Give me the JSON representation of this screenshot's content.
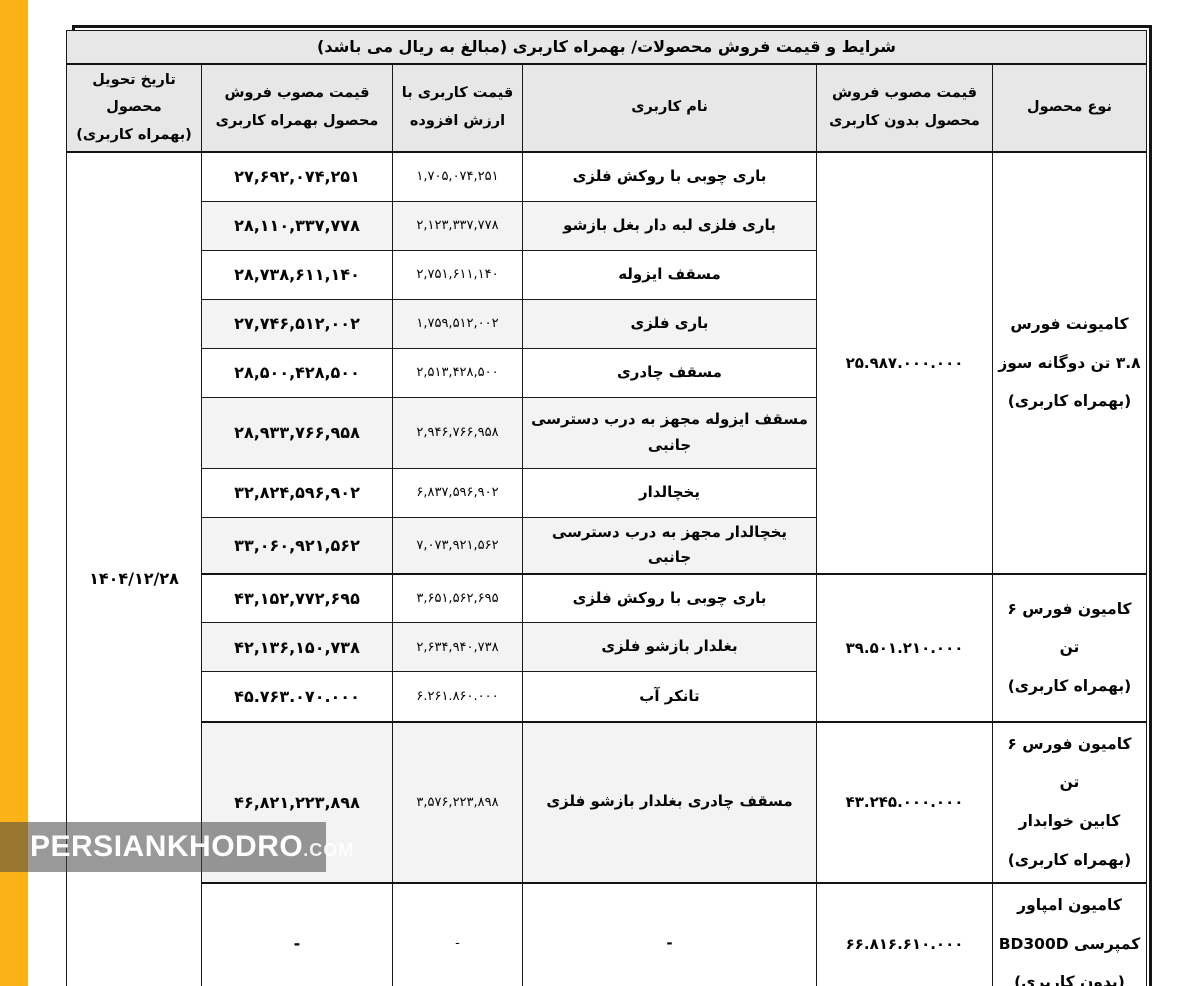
{
  "colors": {
    "accent_bar": "#FBB216",
    "header_bg": "#E7E7E7",
    "row_alt_bg": "#F3F3F3",
    "watermark_bg_rgba": "rgba(70,70,70,0.55)"
  },
  "watermark": {
    "brand": "PERSIANKHODRO",
    "suffix": ".COM"
  },
  "table": {
    "title": "شرایط و قیمت فروش محصولات/ بهمراه کاربری (مبالغ به ریال می باشد)",
    "headers": {
      "product_type": "نوع محصول",
      "price_without": "قیمت مصوب فروش\nمحصول بدون کاربری",
      "usage_name": "نام کاربری",
      "usage_price_vat": "قیمت کاربری با\nارزش افزوده",
      "price_with": "قیمت مصوب فروش\nمحصول بهمراه کاربری",
      "delivery_date": "تاریخ تحویل\nمحصول\n(بهمراه کاربری)"
    },
    "delivery_date": "۱۴۰۴/۱۲/۲۸",
    "groups": [
      {
        "product_type": [
          "کامیونت فورس",
          "۳.۸ تن دوگانه سوز",
          "(بهمراه کاربری)"
        ],
        "price_without": "۲۵.۹۸۷.۰۰۰.۰۰۰",
        "rows": [
          {
            "usage": "باری چوبی با روکش فلزی",
            "vat_price": "۱,۷۰۵,۰۷۴,۲۵۱",
            "total_price": "۲۷,۶۹۲,۰۷۴,۲۵۱"
          },
          {
            "usage": "باری فلزی لبه دار بغل بازشو",
            "vat_price": "۲,۱۲۳,۳۳۷,۷۷۸",
            "total_price": "۲۸,۱۱۰,۳۳۷,۷۷۸"
          },
          {
            "usage": "مسقف ایزوله",
            "vat_price": "۲,۷۵۱,۶۱۱,۱۴۰",
            "total_price": "۲۸,۷۳۸,۶۱۱,۱۴۰"
          },
          {
            "usage": "باری فلزی",
            "vat_price": "۱,۷۵۹,۵۱۲,۰۰۲",
            "total_price": "۲۷,۷۴۶,۵۱۲,۰۰۲"
          },
          {
            "usage": "مسقف چادری",
            "vat_price": "۲,۵۱۳,۴۲۸,۵۰۰",
            "total_price": "۲۸,۵۰۰,۴۲۸,۵۰۰"
          },
          {
            "usage": "مسقف ایزوله مجهز به درب دسترسی جانبی",
            "vat_price": "۲,۹۴۶,۷۶۶,۹۵۸",
            "total_price": "۲۸,۹۳۳,۷۶۶,۹۵۸"
          },
          {
            "usage": "یخچالدار",
            "vat_price": "۶,۸۳۷,۵۹۶,۹۰۲",
            "total_price": "۳۲,۸۲۴,۵۹۶,۹۰۲"
          },
          {
            "usage": "یخچالدار مجهز به درب دسترسی جانبی",
            "vat_price": "۷,۰۷۳,۹۲۱,۵۶۲",
            "total_price": "۳۳,۰۶۰,۹۲۱,۵۶۲"
          }
        ]
      },
      {
        "product_type": [
          "کامیون فورس ۶ تن",
          "(بهمراه کاربری)"
        ],
        "price_without": "۳۹.۵۰۱.۲۱۰.۰۰۰",
        "rows": [
          {
            "usage": "باری چوبی با روکش فلزی",
            "vat_price": "۳,۶۵۱,۵۶۲,۶۹۵",
            "total_price": "۴۳,۱۵۲,۷۷۲,۶۹۵"
          },
          {
            "usage": "بغلدار بازشو فلزی",
            "vat_price": "۲,۶۳۴,۹۴۰,۷۳۸",
            "total_price": "۴۲,۱۳۶,۱۵۰,۷۳۸"
          },
          {
            "usage": "تانکر آب",
            "vat_price": "۶.۲۶۱.۸۶۰.۰۰۰",
            "total_price": "۴۵.۷۶۳.۰۷۰.۰۰۰"
          }
        ]
      },
      {
        "product_type": [
          "کامیون فورس ۶ تن",
          "کابین خوابدار",
          "(بهمراه کاربری)"
        ],
        "price_without": "۴۳.۲۴۵.۰۰۰.۰۰۰",
        "rows": [
          {
            "usage": "مسقف چادری بغلدار بازشو فلزی",
            "vat_price": "۳,۵۷۶,۲۲۳,۸۹۸",
            "total_price": "۴۶,۸۲۱,۲۲۳,۸۹۸"
          }
        ]
      },
      {
        "product_type": [
          "کامیون امپاور",
          "کمپرسی BD300D",
          "(بدون کاربری)"
        ],
        "price_without": "۶۶.۸۱۶.۶۱۰.۰۰۰",
        "rows": [
          {
            "usage": "-",
            "vat_price": "-",
            "total_price": "-"
          }
        ]
      }
    ]
  }
}
